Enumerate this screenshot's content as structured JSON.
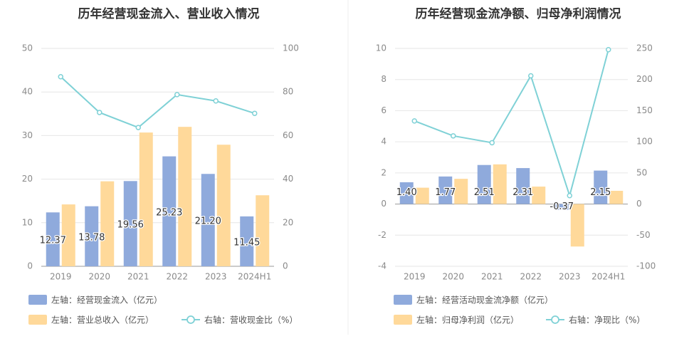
{
  "chart_data": [
    {
      "type": "bar",
      "title": "历年经营现金流入、营业收入情况",
      "categories": [
        "2019",
        "2020",
        "2021",
        "2022",
        "2023",
        "2024H1"
      ],
      "left_axis": {
        "ylim": [
          0,
          50
        ],
        "ticks": [
          "0",
          "10",
          "20",
          "30",
          "40",
          "50"
        ]
      },
      "right_axis": {
        "ylim": [
          0,
          100
        ],
        "ticks": [
          "0",
          "20",
          "40",
          "60",
          "80",
          "100"
        ]
      },
      "series": [
        {
          "name": "左轴：经营现金流入（亿元）",
          "type": "bar",
          "axis": "left",
          "color": "#8faadc",
          "values": [
            12.37,
            13.78,
            19.56,
            25.23,
            21.2,
            11.45
          ],
          "labels": [
            "12.37",
            "13.78",
            "19.56",
            "25.23",
            "21.20",
            "11.45"
          ]
        },
        {
          "name": "左轴：营业总收入（亿元）",
          "type": "bar",
          "axis": "left",
          "color": "#ffd99a",
          "values": [
            14.2,
            19.5,
            30.7,
            32.0,
            27.9,
            16.3
          ]
        },
        {
          "name": "右轴：营收现金比（%）",
          "type": "line",
          "axis": "right",
          "color": "#7fd1d6",
          "values": [
            87.0,
            70.6,
            63.7,
            78.8,
            75.9,
            70.2
          ]
        }
      ],
      "legend": "bottom"
    },
    {
      "type": "bar",
      "title": "历年经营现金流净额、归母净利润情况",
      "categories": [
        "2019",
        "2020",
        "2021",
        "2022",
        "2023",
        "2024H1"
      ],
      "left_axis": {
        "ylim": [
          -4,
          10
        ],
        "ticks": [
          "-4",
          "-2",
          "0",
          "2",
          "4",
          "6",
          "8",
          "10"
        ]
      },
      "right_axis": {
        "ylim": [
          -100,
          250
        ],
        "ticks": [
          "-100",
          "-50",
          "0",
          "50",
          "100",
          "150",
          "200",
          "250"
        ]
      },
      "series": [
        {
          "name": "左轴：经营活动现金流净额（亿元）",
          "type": "bar",
          "axis": "left",
          "color": "#8faadc",
          "values": [
            1.4,
            1.77,
            2.51,
            2.31,
            -0.37,
            2.15
          ],
          "labels": [
            "1.40",
            "1.77",
            "2.51",
            "2.31",
            "-0.37",
            "2.15"
          ]
        },
        {
          "name": "左轴：归母净利润（亿元）",
          "type": "bar",
          "axis": "left",
          "color": "#ffd99a",
          "values": [
            1.05,
            1.62,
            2.55,
            1.12,
            -2.73,
            0.85
          ]
        },
        {
          "name": "右轴：净现比（%）",
          "type": "line",
          "axis": "right",
          "color": "#7fd1d6",
          "values": [
            133.5,
            109.5,
            98.5,
            206.0,
            13.5,
            248.0
          ]
        }
      ],
      "legend": "bottom"
    }
  ]
}
